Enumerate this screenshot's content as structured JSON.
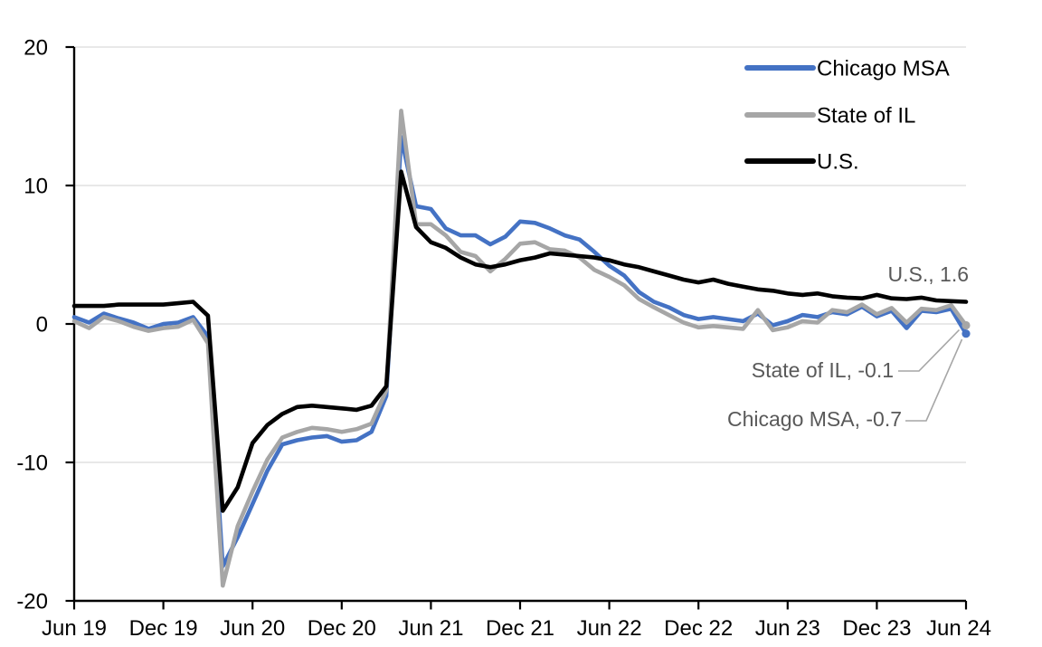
{
  "chart_data": {
    "type": "line",
    "title": "",
    "frequency": "monthly",
    "x_start": "Jun 19",
    "x_end": "Jun 24",
    "x_tick_labels": [
      "Jun 19",
      "Dec 19",
      "Jun 20",
      "Dec 20",
      "Jun 21",
      "Dec 21",
      "Jun 22",
      "Dec 22",
      "Jun 23",
      "Dec 23",
      "Jun 24"
    ],
    "y_tick_labels": [
      "20",
      "10",
      "0",
      "-10",
      "-20"
    ],
    "y_ticks": [
      20,
      10,
      0,
      -10,
      -20
    ],
    "ylim": [
      -20,
      20
    ],
    "gridline_values": [
      20,
      10,
      0,
      -10
    ],
    "grid": "horizontal",
    "legend_position": "top-right-inside",
    "series": [
      {
        "name": "Chicago MSA",
        "color": "#4472C4",
        "end_marker": true,
        "values": [
          0.5,
          0.1,
          0.75,
          0.4,
          0.1,
          -0.35,
          0.0,
          0.1,
          0.5,
          -0.9,
          -17.5,
          -15.4,
          -13.0,
          -10.6,
          -8.7,
          -8.4,
          -8.2,
          -8.1,
          -8.5,
          -8.4,
          -7.8,
          -5.2,
          13.5,
          8.5,
          8.3,
          6.9,
          6.4,
          6.4,
          5.75,
          6.3,
          7.4,
          7.3,
          6.9,
          6.4,
          6.1,
          5.2,
          4.2,
          3.5,
          2.3,
          1.6,
          1.2,
          0.65,
          0.35,
          0.5,
          0.35,
          0.2,
          0.75,
          -0.1,
          0.2,
          0.65,
          0.5,
          0.85,
          0.7,
          1.25,
          0.55,
          0.95,
          -0.3,
          0.95,
          0.85,
          1.1,
          -0.7
        ]
      },
      {
        "name": "State of IL",
        "color": "#A6A6A6",
        "end_marker": true,
        "values": [
          0.2,
          -0.3,
          0.5,
          0.2,
          -0.2,
          -0.5,
          -0.3,
          -0.2,
          0.3,
          -1.4,
          -18.9,
          -14.6,
          -12.1,
          -9.8,
          -8.2,
          -7.8,
          -7.5,
          -7.6,
          -7.8,
          -7.6,
          -7.2,
          -4.8,
          15.4,
          7.2,
          7.2,
          6.4,
          5.2,
          4.9,
          3.8,
          4.7,
          5.8,
          5.9,
          5.4,
          5.3,
          4.8,
          3.9,
          3.4,
          2.8,
          1.8,
          1.2,
          0.65,
          0.1,
          -0.25,
          -0.15,
          -0.25,
          -0.35,
          1.0,
          -0.45,
          -0.25,
          0.2,
          0.1,
          1.0,
          0.85,
          1.4,
          0.7,
          1.15,
          0.1,
          1.1,
          1.0,
          1.35,
          -0.1
        ]
      },
      {
        "name": "U.S.",
        "color": "#000000",
        "end_marker": false,
        "values": [
          1.3,
          1.3,
          1.3,
          1.4,
          1.4,
          1.4,
          1.4,
          1.5,
          1.6,
          0.6,
          -13.5,
          -11.8,
          -8.6,
          -7.3,
          -6.5,
          -6.0,
          -5.9,
          -6.0,
          -6.1,
          -6.2,
          -5.9,
          -4.5,
          11.0,
          7.0,
          5.9,
          5.5,
          4.8,
          4.3,
          4.1,
          4.3,
          4.6,
          4.8,
          5.1,
          5.0,
          4.9,
          4.8,
          4.6,
          4.3,
          4.1,
          3.8,
          3.5,
          3.2,
          3.0,
          3.2,
          2.9,
          2.7,
          2.5,
          2.4,
          2.2,
          2.1,
          2.2,
          2.0,
          1.9,
          1.85,
          2.1,
          1.85,
          1.8,
          1.9,
          1.7,
          1.65,
          1.6
        ]
      }
    ],
    "legend": [
      {
        "label": "Chicago MSA",
        "color": "#4472C4"
      },
      {
        "label": "State of IL",
        "color": "#A6A6A6"
      },
      {
        "label": "U.S.",
        "color": "#000000"
      }
    ],
    "annotations": [
      {
        "text": "U.S., 1.6",
        "series": "U.S.",
        "value": 1.6
      },
      {
        "text": "State of IL, -0.1",
        "series": "State of IL",
        "value": -0.1
      },
      {
        "text": "Chicago MSA, -0.7",
        "series": "Chicago MSA",
        "value": -0.7
      }
    ]
  },
  "colors": {
    "background": "#FFFFFF",
    "gridline": "#D9D9D9",
    "axis": "#000000",
    "tick_label": "#000000",
    "legend_text": "#000000",
    "annotation_text": "#595959",
    "leader_line": "#A6A6A6"
  }
}
